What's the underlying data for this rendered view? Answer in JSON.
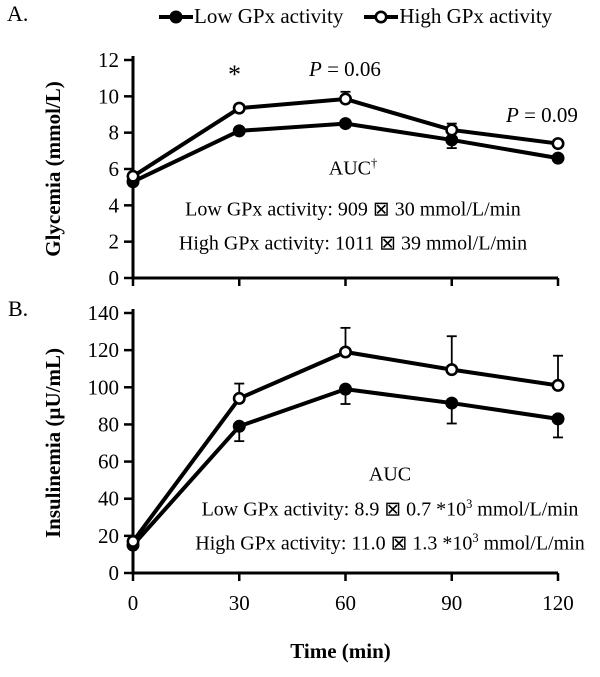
{
  "figure": {
    "panel_a_label": "A.",
    "panel_b_label": "B."
  },
  "legend": {
    "items": [
      {
        "label": "Low GPx activity",
        "marker": "filled-circle"
      },
      {
        "label": "High GPx activity",
        "marker": "open-circle"
      }
    ]
  },
  "colors": {
    "series": "#000000",
    "background": "#ffffff"
  },
  "chart_data": [
    {
      "type": "line",
      "panel": "A",
      "x": [
        0,
        30,
        60,
        90,
        120
      ],
      "xlim": [
        0,
        120
      ],
      "xticks": [
        0,
        30,
        60,
        90,
        120
      ],
      "show_x_tick_labels": false,
      "xlabel": "",
      "ylabel": "Glycemia (mmol/L)",
      "ylim": [
        0,
        12
      ],
      "ytick_step": 2,
      "grid": false,
      "legend_position": "top",
      "series": [
        {
          "name": "Low GPx activity",
          "marker": "filled-circle",
          "values": [
            5.3,
            8.1,
            8.5,
            7.6,
            6.6
          ],
          "err_up": [
            0,
            0,
            0,
            0,
            0
          ],
          "err_down": [
            0,
            0,
            0,
            0.45,
            0
          ]
        },
        {
          "name": "High GPx activity",
          "marker": "open-circle",
          "values": [
            5.6,
            9.35,
            9.85,
            8.15,
            7.4
          ],
          "err_up": [
            0,
            0.2,
            0.4,
            0.35,
            0.2
          ],
          "err_down": [
            0,
            0,
            0,
            0,
            0
          ]
        }
      ],
      "annotations": {
        "star": "*",
        "p_values": [
          {
            "italic": "P",
            "rest": " = 0.06"
          },
          {
            "italic": "P",
            "rest": " = 0.09"
          }
        ],
        "auc": {
          "title": "AUC",
          "title_sup": "†",
          "lines": [
            {
              "pre": "Low GPx activity: 909 ⊠ 30 mmol/L/min",
              "sup": "",
              "post": ""
            },
            {
              "pre": "High GPx activity: 1011 ⊠ 39 mmol/L/min",
              "sup": "",
              "post": ""
            }
          ]
        }
      }
    },
    {
      "type": "line",
      "panel": "B",
      "x": [
        0,
        30,
        60,
        90,
        120
      ],
      "xlim": [
        0,
        120
      ],
      "xticks": [
        0,
        30,
        60,
        90,
        120
      ],
      "show_x_tick_labels": true,
      "xlabel": "Time (min)",
      "ylabel": "Insulinemia (µU/mL)",
      "ylim": [
        0,
        140
      ],
      "ytick_step": 20,
      "grid": false,
      "series": [
        {
          "name": "Low GPx activity",
          "marker": "filled-circle",
          "values": [
            15,
            79,
            99,
            91.5,
            83
          ],
          "err_up": [
            0,
            0,
            0,
            0,
            0
          ],
          "err_down": [
            0,
            8,
            8,
            11,
            10
          ]
        },
        {
          "name": "High GPx activity",
          "marker": "open-circle",
          "values": [
            17,
            94,
            119,
            109.5,
            101
          ],
          "err_up": [
            0,
            8,
            13,
            18,
            16
          ],
          "err_down": [
            0,
            0,
            0,
            0,
            0
          ]
        }
      ],
      "annotations": {
        "auc": {
          "title": "AUC",
          "title_sup": "",
          "lines": [
            {
              "pre": "Low GPx activity: 8.9 ⊠ 0.7 *10",
              "sup": "3",
              "post": " mmol/L/min"
            },
            {
              "pre": "High GPx activity: 11.0 ⊠ 1.3 *10",
              "sup": "3",
              "post": " mmol/L/min"
            }
          ]
        }
      }
    }
  ]
}
